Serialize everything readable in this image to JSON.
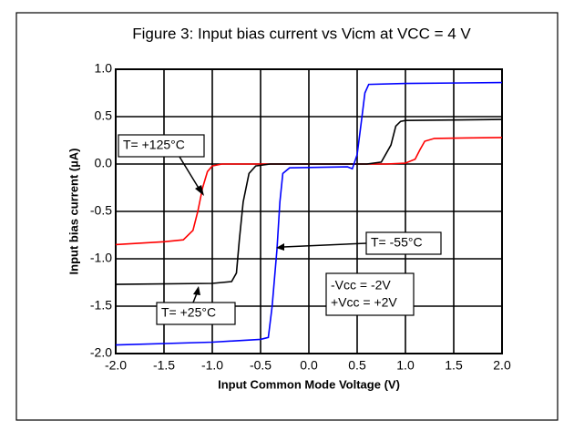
{
  "chart_data": {
    "type": "line",
    "title": "Figure 3: Input bias current vs Vicm at VCC = 4 V",
    "x_label": "Input Common Mode Voltage  (V)",
    "y_label": "Input bias current  (µA)",
    "xlim": [
      -2.0,
      2.0
    ],
    "ylim": [
      -2.0,
      1.0
    ],
    "xticks": [
      {
        "value": -2.0,
        "label": "-2.0"
      },
      {
        "value": -1.5,
        "label": "-1.5"
      },
      {
        "value": -1.0,
        "label": "-1.0"
      },
      {
        "value": -0.5,
        "label": "-0.5"
      },
      {
        "value": 0.0,
        "label": "0.0"
      },
      {
        "value": 0.5,
        "label": "0.5"
      },
      {
        "value": 1.0,
        "label": "1.0"
      },
      {
        "value": 1.5,
        "label": "1.5"
      },
      {
        "value": 2.0,
        "label": "2.0"
      }
    ],
    "yticks": [
      {
        "value": 1.0,
        "label": "1.0"
      },
      0.5,
      {
        "value": 0.0,
        "label": "0.0"
      },
      -0.5,
      {
        "value": -1.0,
        "label": "-1.0"
      },
      -1.5,
      {
        "value": -2.0,
        "label": "-2.0"
      }
    ],
    "grid": true,
    "series": [
      {
        "name": "T= +125°C",
        "color": "#ff0000",
        "x": [
          -2.0,
          -1.5,
          -1.3,
          -1.2,
          -1.15,
          -1.1,
          -1.05,
          -1.0,
          -0.9,
          0.0,
          0.8,
          1.0,
          1.1,
          1.15,
          1.2,
          1.3,
          2.0
        ],
        "values": [
          -0.85,
          -0.82,
          -0.8,
          -0.7,
          -0.5,
          -0.25,
          -0.08,
          -0.02,
          0.0,
          0.0,
          0.0,
          0.01,
          0.05,
          0.15,
          0.24,
          0.27,
          0.28
        ]
      },
      {
        "name": "T= +25°C",
        "color": "#000000",
        "x": [
          -2.0,
          -1.0,
          -0.8,
          -0.75,
          -0.72,
          -0.68,
          -0.62,
          -0.55,
          -0.4,
          0.6,
          0.75,
          0.85,
          0.9,
          0.95,
          1.0,
          2.0
        ],
        "values": [
          -1.27,
          -1.26,
          -1.24,
          -1.15,
          -0.8,
          -0.4,
          -0.1,
          -0.02,
          0.0,
          0.0,
          0.02,
          0.2,
          0.4,
          0.45,
          0.46,
          0.47
        ]
      },
      {
        "name": "T= -55°C",
        "color": "#0000ff",
        "x": [
          -2.0,
          -1.0,
          -0.5,
          -0.42,
          -0.38,
          -0.33,
          -0.3,
          -0.27,
          -0.2,
          0.4,
          0.45,
          0.5,
          0.55,
          0.58,
          0.62,
          1.0,
          2.0
        ],
        "values": [
          -1.91,
          -1.88,
          -1.85,
          -1.83,
          -1.5,
          -0.9,
          -0.4,
          -0.1,
          -0.04,
          -0.03,
          -0.05,
          0.1,
          0.5,
          0.75,
          0.84,
          0.85,
          0.86
        ]
      }
    ],
    "annotations": [
      "-Vcc = -2V",
      "+Vcc = +2V"
    ]
  }
}
